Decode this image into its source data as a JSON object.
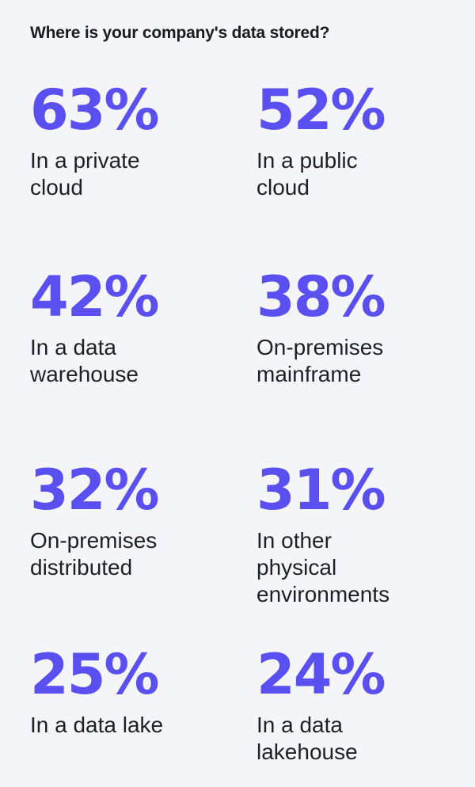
{
  "chart_data": {
    "type": "table",
    "title": "Where is your company's data stored?",
    "items": [
      {
        "value": "63%",
        "percent": 63,
        "label": "In a private\ncloud"
      },
      {
        "value": "52%",
        "percent": 52,
        "label": "In a public\ncloud"
      },
      {
        "value": "42%",
        "percent": 42,
        "label": "In a data\nwarehouse"
      },
      {
        "value": "38%",
        "percent": 38,
        "label": "On-premises\nmainframe"
      },
      {
        "value": "32%",
        "percent": 32,
        "label": "On-premises\ndistributed"
      },
      {
        "value": "31%",
        "percent": 31,
        "label": "In other\nphysical\nenvironments"
      },
      {
        "value": "25%",
        "percent": 25,
        "label": "In a data lake"
      },
      {
        "value": "24%",
        "percent": 24,
        "label": "In a data\nlakehouse"
      }
    ]
  },
  "colors": {
    "accent": "#5a4ff0",
    "background": "#f4f5f9",
    "text": "#1f1f28"
  }
}
